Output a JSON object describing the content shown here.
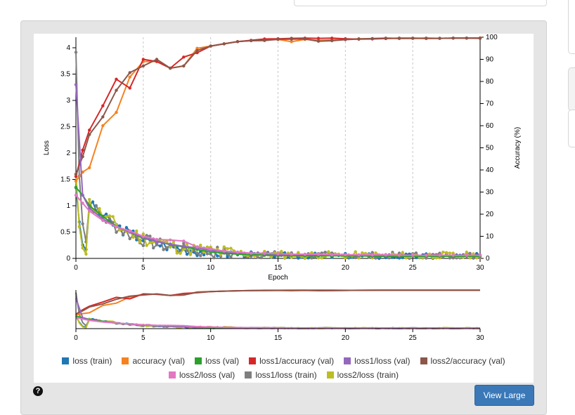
{
  "chart_data": {
    "type": "line",
    "xlabel": "Epoch",
    "ylabel_left": "Loss",
    "ylabel_right": "Accuracy (%)",
    "xlim": [
      0,
      30
    ],
    "ylim_left": [
      0,
      4.2
    ],
    "ylim_right": [
      0,
      100
    ],
    "x_ticks": [
      "0",
      "5",
      "10",
      "15",
      "20",
      "25",
      "30"
    ],
    "y_left_ticks": [
      "0",
      "0.5",
      "1",
      "1.5",
      "2",
      "2.5",
      "3",
      "3.5",
      "4"
    ],
    "y_right_ticks": [
      "0",
      "10",
      "20",
      "30",
      "40",
      "50",
      "60",
      "70",
      "80",
      "90",
      "100"
    ],
    "grid": "vertical dashed at x ticks",
    "series_val_x": [
      0,
      0.5,
      1,
      2,
      3,
      4,
      5,
      6,
      7,
      8,
      9,
      10,
      11,
      12,
      13,
      14,
      15,
      16,
      17,
      18,
      19,
      20,
      21,
      22,
      23,
      24,
      25,
      26,
      27,
      28,
      29,
      30
    ],
    "series": [
      {
        "name": "accuracy (val)",
        "axis": "right",
        "color": "#f5821f",
        "values": [
          35,
          39,
          41,
          60,
          66,
          82,
          89,
          89,
          86,
          87,
          95,
          96,
          97,
          98,
          98.5,
          98.8,
          99,
          98,
          99,
          98.6,
          98.8,
          99,
          99.3,
          99.4,
          99.5,
          99.4,
          99.5,
          99.4,
          99.5,
          99.6,
          99.6,
          99.7
        ]
      },
      {
        "name": "loss1/accuracy (val)",
        "axis": "right",
        "color": "#d62728",
        "values": [
          37,
          49,
          58,
          69,
          81,
          77,
          90,
          89,
          86,
          91,
          93,
          96,
          97,
          98,
          98.6,
          99.2,
          99.3,
          99.5,
          99.6,
          99.5,
          99.6,
          99.3,
          99.1,
          99.2,
          99.4,
          99.6,
          99.6,
          99.5,
          99.5,
          99.6,
          99.6,
          99.5
        ]
      },
      {
        "name": "loss2/accuracy (val)",
        "axis": "right",
        "color": "#8c564b",
        "values": [
          38,
          46,
          56,
          64,
          76,
          84,
          87,
          90,
          86,
          87,
          94,
          96,
          97,
          98,
          98.4,
          98.5,
          99,
          99.1,
          99.2,
          98.2,
          98.4,
          98.9,
          99.2,
          99.4,
          99.6,
          99.5,
          99.5,
          99.6,
          99.5,
          99.6,
          99.6,
          99.6
        ]
      },
      {
        "name": "loss (val)",
        "axis": "left",
        "color": "#2ca02c",
        "values": [
          1.35,
          1.2,
          1.0,
          0.8,
          0.6,
          0.5,
          0.38,
          0.33,
          0.26,
          0.22,
          0.17,
          0.12,
          0.1,
          0.08,
          0.07,
          0.06,
          0.06,
          0.06,
          0.05,
          0.05,
          0.05,
          0.05,
          0.05,
          0.04,
          0.04,
          0.04,
          0.04,
          0.04,
          0.04,
          0.04,
          0.04,
          0.04
        ]
      },
      {
        "name": "loss1/loss (val)",
        "axis": "left",
        "color": "#9467bd",
        "values": [
          3.3,
          1.2,
          0.95,
          0.75,
          0.6,
          0.5,
          0.4,
          0.32,
          0.27,
          0.23,
          0.2,
          0.15,
          0.13,
          0.11,
          0.1,
          0.09,
          0.08,
          0.08,
          0.07,
          0.07,
          0.07,
          0.07,
          0.06,
          0.06,
          0.06,
          0.06,
          0.06,
          0.06,
          0.06,
          0.06,
          0.06,
          0.06
        ]
      },
      {
        "name": "loss2/loss (val)",
        "axis": "left",
        "color": "#e377c2",
        "values": [
          1.2,
          1.05,
          0.9,
          0.72,
          0.6,
          0.52,
          0.42,
          0.36,
          0.35,
          0.33,
          0.22,
          0.18,
          0.14,
          0.12,
          0.1,
          0.1,
          0.09,
          0.08,
          0.08,
          0.08,
          0.07,
          0.07,
          0.07,
          0.07,
          0.07,
          0.06,
          0.06,
          0.06,
          0.06,
          0.06,
          0.06,
          0.06
        ]
      }
    ],
    "train_series": [
      {
        "name": "loss (train)",
        "color": "#1f77b4",
        "start": 1.4,
        "base": 0.04,
        "decay": 0.28,
        "noise": 0.09,
        "seed": 3
      },
      {
        "name": "loss1/loss (train)",
        "color": "#7f7f7f",
        "start": 3.9,
        "base": 0.05,
        "decay": 0.3,
        "noise": 0.11,
        "seed": 7
      },
      {
        "name": "loss2/loss (train)",
        "color": "#bcbd22",
        "start": 1.5,
        "base": 0.05,
        "decay": 0.27,
        "noise": 0.12,
        "seed": 11
      }
    ],
    "legend": [
      [
        {
          "label": "loss (train)",
          "color": "#1f77b4"
        },
        {
          "label": "accuracy (val)",
          "color": "#f5821f"
        },
        {
          "label": "loss (val)",
          "color": "#2ca02c"
        },
        {
          "label": "loss1/accuracy (val)",
          "color": "#d62728"
        },
        {
          "label": "loss1/loss (val)",
          "color": "#9467bd"
        },
        {
          "label": "loss2/accuracy (val)",
          "color": "#8c564b"
        }
      ],
      [
        {
          "label": "loss2/loss (val)",
          "color": "#e377c2"
        },
        {
          "label": "loss1/loss (train)",
          "color": "#7f7f7f"
        },
        {
          "label": "loss2/loss (train)",
          "color": "#bcbd22"
        }
      ]
    ]
  },
  "buttons": {
    "view_large": "View Large",
    "help": "?"
  }
}
